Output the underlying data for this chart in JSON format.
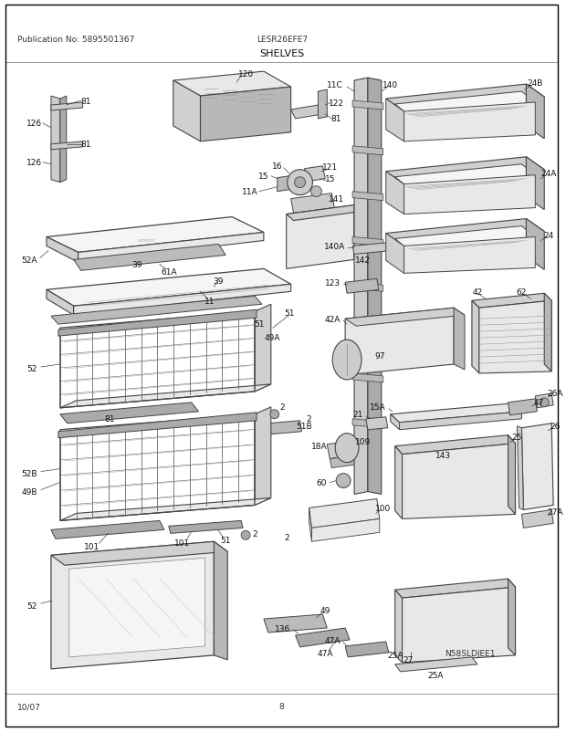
{
  "title": "SHELVES",
  "model": "LESR26EFE7",
  "publication": "Publication No: 5895501367",
  "page": "8",
  "date": "10/07",
  "diagram_note": "N58SLDJEE1",
  "bg_color": "#ffffff",
  "border_color": "#000000",
  "text_color": "#333333",
  "fig_width": 6.2,
  "fig_height": 8.03,
  "dpi": 100
}
